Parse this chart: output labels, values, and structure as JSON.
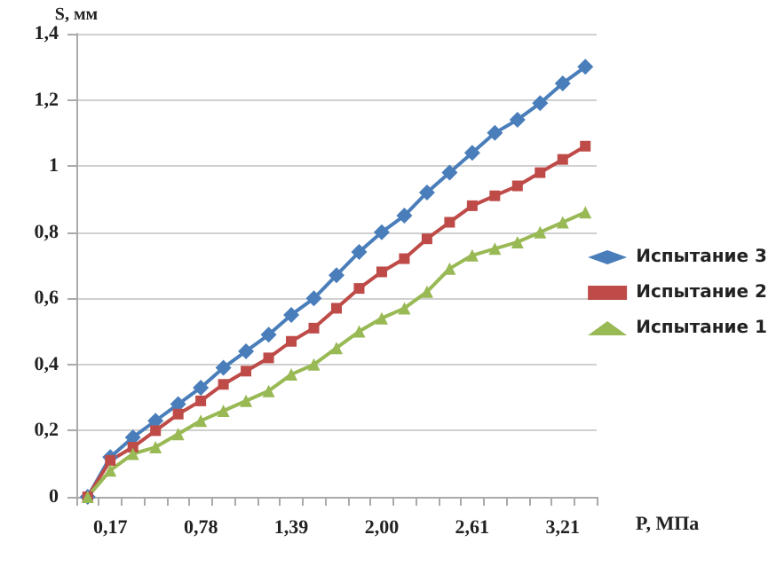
{
  "chart_data": {
    "type": "line",
    "xlabel": "P, МПа",
    "ylabel": "S, мм",
    "categories": [
      null,
      "0,17",
      null,
      null,
      null,
      "0,78",
      null,
      null,
      null,
      "1,39",
      null,
      null,
      null,
      "2,00",
      null,
      null,
      null,
      "2,61",
      null,
      null,
      null,
      "3,21",
      null
    ],
    "series": [
      {
        "name": "Испытание 3",
        "color": "#4a7ebb",
        "marker": "diamond",
        "values": [
          0,
          0.12,
          0.18,
          0.23,
          0.28,
          0.33,
          0.39,
          0.44,
          0.49,
          0.55,
          0.6,
          0.67,
          0.74,
          0.8,
          0.85,
          0.92,
          0.98,
          1.04,
          1.1,
          1.14,
          1.19,
          1.25,
          1.3
        ]
      },
      {
        "name": "Испытание 2",
        "color": "#be4b48",
        "marker": "square",
        "values": [
          0,
          0.11,
          0.15,
          0.2,
          0.25,
          0.29,
          0.34,
          0.38,
          0.42,
          0.47,
          0.51,
          0.57,
          0.63,
          0.68,
          0.72,
          0.78,
          0.83,
          0.88,
          0.91,
          0.94,
          0.98,
          1.02,
          1.06
        ]
      },
      {
        "name": "Испытание 1",
        "color": "#98b954",
        "marker": "triangle",
        "values": [
          0,
          0.08,
          0.13,
          0.15,
          0.19,
          0.23,
          0.26,
          0.29,
          0.32,
          0.37,
          0.4,
          0.45,
          0.5,
          0.54,
          0.57,
          0.62,
          0.69,
          0.73,
          0.75,
          0.77,
          0.8,
          0.83,
          0.86
        ]
      }
    ],
    "ylim": [
      0,
      1.4
    ],
    "yticks": [
      {
        "value": 0,
        "label": "0"
      },
      {
        "value": 0.2,
        "label": "0,2"
      },
      {
        "value": 0.4,
        "label": "0,4"
      },
      {
        "value": 0.6,
        "label": "0,6"
      },
      {
        "value": 0.8,
        "label": "0,8"
      },
      {
        "value": 1,
        "label": "1"
      },
      {
        "value": 1.2,
        "label": "1,2"
      },
      {
        "value": 1.4,
        "label": "1,4"
      }
    ],
    "grid": "y",
    "legend": "right",
    "line_style": "solid"
  }
}
